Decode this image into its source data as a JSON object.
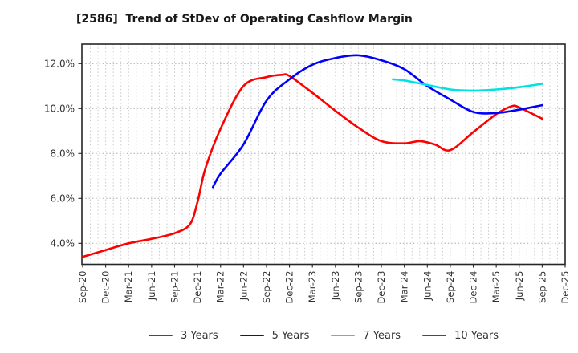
{
  "title": "[2586]  Trend of StDev of Operating Cashflow Margin",
  "chart_data": {
    "type": "line",
    "title": "[2586]  Trend of StDev of Operating Cashflow Margin",
    "x_axis": {
      "tick_labels": [
        "Sep-20",
        "Dec-20",
        "Mar-21",
        "Jun-21",
        "Sep-21",
        "Dec-21",
        "Mar-22",
        "Jun-22",
        "Sep-22",
        "Dec-22",
        "Mar-23",
        "Jun-23",
        "Sep-23",
        "Dec-23",
        "Mar-24",
        "Jun-24",
        "Sep-24",
        "Dec-24",
        "Mar-25",
        "Jun-25",
        "Sep-25",
        "Dec-25"
      ],
      "months_per_tick": 3,
      "total_months": 63,
      "gridlines": "monthly-dotted"
    },
    "y_axis": {
      "tick_values": [
        4,
        6,
        8,
        10,
        12
      ],
      "tick_labels": [
        "4.0%",
        "6.0%",
        "8.0%",
        "10.0%",
        "12.0%"
      ],
      "unit": "%",
      "ylim": [
        3.05,
        12.9
      ],
      "gridlines": "dotted-every-2-percent"
    },
    "legend_position": "bottom",
    "grid": true,
    "series": [
      {
        "name": "3 Years",
        "color": "#ff0000",
        "points": [
          [
            0,
            3.4
          ],
          [
            3,
            3.7
          ],
          [
            6,
            4.0
          ],
          [
            9,
            4.2
          ],
          [
            12,
            4.45
          ],
          [
            14,
            4.85
          ],
          [
            15,
            5.85
          ],
          [
            16,
            7.3
          ],
          [
            18,
            9.1
          ],
          [
            21,
            11.0
          ],
          [
            24,
            11.4
          ],
          [
            26,
            11.5
          ],
          [
            27,
            11.45
          ],
          [
            30,
            10.7
          ],
          [
            33,
            9.9
          ],
          [
            36,
            9.15
          ],
          [
            39,
            8.55
          ],
          [
            42,
            8.45
          ],
          [
            44,
            8.55
          ],
          [
            46,
            8.4
          ],
          [
            48,
            8.15
          ],
          [
            51,
            8.95
          ],
          [
            54,
            9.75
          ],
          [
            56,
            10.1
          ],
          [
            57,
            10.05
          ],
          [
            60,
            9.55
          ]
        ]
      },
      {
        "name": "5 Years",
        "color": "#0000ff",
        "points": [
          [
            17,
            6.5
          ],
          [
            18,
            7.1
          ],
          [
            21,
            8.4
          ],
          [
            24,
            10.35
          ],
          [
            27,
            11.3
          ],
          [
            30,
            11.95
          ],
          [
            33,
            12.25
          ],
          [
            36,
            12.37
          ],
          [
            39,
            12.15
          ],
          [
            42,
            11.75
          ],
          [
            45,
            11.0
          ],
          [
            48,
            10.4
          ],
          [
            51,
            9.85
          ],
          [
            54,
            9.8
          ],
          [
            57,
            9.95
          ],
          [
            60,
            10.15
          ]
        ]
      },
      {
        "name": "7 Years",
        "color": "#00e1e6",
        "points": [
          [
            40.5,
            11.3
          ],
          [
            42,
            11.25
          ],
          [
            45,
            11.05
          ],
          [
            48,
            10.85
          ],
          [
            51,
            10.8
          ],
          [
            54,
            10.85
          ],
          [
            57,
            10.95
          ],
          [
            60,
            11.1
          ]
        ]
      },
      {
        "name": "10 Years",
        "color": "#008000",
        "points": []
      }
    ]
  }
}
